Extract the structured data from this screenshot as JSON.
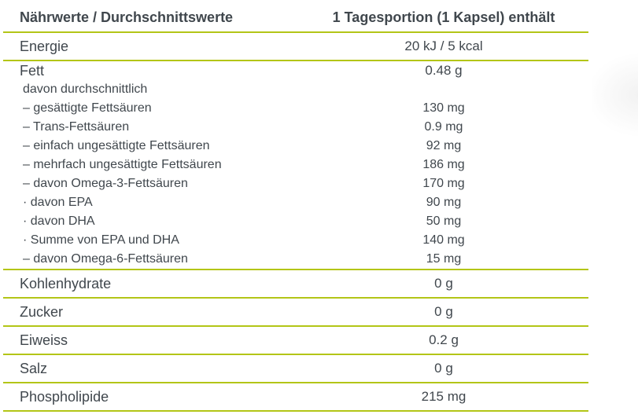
{
  "colors": {
    "accent": "#b3c517",
    "text": "#40474d"
  },
  "table": {
    "header": {
      "col1": "Nährwerte / Durchschnittswerte",
      "col2": "1 Tagesportion (1 Kapsel) enthält"
    },
    "energie": {
      "label": "Energie",
      "value": "20 kJ / 5 kcal"
    },
    "fett_group": {
      "lines": [
        {
          "label": "Fett",
          "value": "0.48 g"
        },
        {
          "label": "davon durchschnittlich",
          "value": ""
        },
        {
          "label": "– gesättigte Fettsäuren",
          "value": "130 mg"
        },
        {
          "label": "– Trans-Fettsäuren",
          "value": "0.9 mg"
        },
        {
          "label": "– einfach ungesättigte Fettsäuren",
          "value": "92 mg"
        },
        {
          "label": "– mehrfach ungesättigte Fettsäuren",
          "value": "186 mg"
        },
        {
          "label": "– davon Omega-3-Fettsäuren",
          "value": "170 mg"
        },
        {
          "label": "· davon EPA",
          "value": "90 mg"
        },
        {
          "label": "· davon DHA",
          "value": "50 mg"
        },
        {
          "label": "· Summe von EPA und DHA",
          "value": "140 mg"
        },
        {
          "label": "– davon Omega-6-Fettsäuren",
          "value": "15 mg"
        }
      ]
    },
    "simple_rows": [
      {
        "label": "Kohlenhydrate",
        "value": "0 g"
      },
      {
        "label": "Zucker",
        "value": "0 g"
      },
      {
        "label": "Eiweiss",
        "value": "0.2 g"
      },
      {
        "label": "Salz",
        "value": "0 g"
      },
      {
        "label": "Phospholipide",
        "value": "215 mg"
      }
    ]
  }
}
